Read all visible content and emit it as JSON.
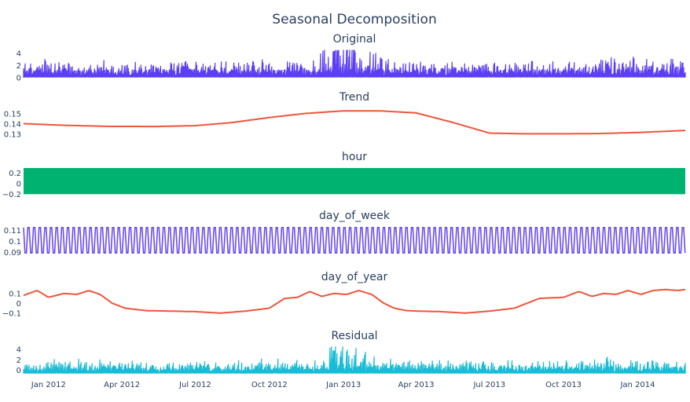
{
  "chart_data": {
    "type": "line",
    "title": "Seasonal Decomposition",
    "x_range": [
      "2011-12-01",
      "2014-03-01"
    ],
    "x_ticks": [
      "Jan 2012",
      "Apr 2012",
      "Jul 2012",
      "Oct 2012",
      "Jan 2013",
      "Apr 2013",
      "Jul 2013",
      "Oct 2013",
      "Jan 2014"
    ],
    "x_tick_dates": [
      "2012-01-01",
      "2012-04-01",
      "2012-07-01",
      "2012-10-01",
      "2013-01-01",
      "2013-04-01",
      "2013-07-01",
      "2013-10-01",
      "2014-01-01"
    ],
    "grid": false,
    "panels": [
      {
        "name": "Original",
        "color": "#5b3ef5",
        "style": "noisy",
        "ylim": [
          0,
          4.8
        ],
        "yticks": [
          "4",
          "2",
          "0"
        ],
        "ytick_values": [
          4,
          2,
          0
        ],
        "mean": 0.9,
        "spread": 1.0,
        "x": [
          "2011-12-01",
          "2012-03-01",
          "2012-06-01",
          "2012-09-01",
          "2012-12-01",
          "2012-12-20",
          "2013-03-01",
          "2013-06-01",
          "2013-09-01",
          "2013-12-01",
          "2014-03-01"
        ],
        "y": [
          1.0,
          1.0,
          0.9,
          1.0,
          1.1,
          4.4,
          1.0,
          0.9,
          0.9,
          1.2,
          1.3
        ]
      },
      {
        "name": "Trend",
        "color": "#ef553b",
        "style": "line",
        "ylim": [
          0.127,
          0.157
        ],
        "yticks": [
          "0.15",
          "0.14",
          "0.13"
        ],
        "ytick_values": [
          0.15,
          0.14,
          0.13
        ],
        "x": [
          "2011-12-01",
          "2012-01-15",
          "2012-03-15",
          "2012-05-15",
          "2012-07-01",
          "2012-08-15",
          "2012-10-01",
          "2012-11-15",
          "2013-01-01",
          "2013-02-15",
          "2013-04-01",
          "2013-05-15",
          "2013-07-01",
          "2013-08-15",
          "2013-10-01",
          "2013-11-15",
          "2014-01-01",
          "2014-03-01"
        ],
        "y": [
          0.1405,
          0.139,
          0.1378,
          0.1377,
          0.1385,
          0.1415,
          0.1465,
          0.1505,
          0.153,
          0.153,
          0.151,
          0.142,
          0.1312,
          0.1305,
          0.1305,
          0.1308,
          0.1318,
          0.1338
        ]
      },
      {
        "name": "hour",
        "color": "#00b26f",
        "style": "band",
        "ylim": [
          -0.24,
          0.33
        ],
        "yticks": [
          "0.2",
          "0",
          "−0.2"
        ],
        "ytick_values": [
          0.2,
          0,
          -0.2
        ],
        "band": [
          -0.2,
          0.3
        ]
      },
      {
        "name": "day_of_week",
        "color": "#6a4cf0",
        "style": "osc",
        "ylim": [
          0.0875,
          0.1145
        ],
        "yticks": [
          "0.11",
          "0.1",
          "0.09"
        ],
        "ytick_values": [
          0.11,
          0.1,
          0.09
        ],
        "period_days": 7,
        "min": 0.0895,
        "max": 0.1125
      },
      {
        "name": "day_of_year",
        "color": "#ef553b",
        "style": "line",
        "ylim": [
          -0.15,
          0.17
        ],
        "yticks": [
          "0.1",
          "0",
          "−0.1"
        ],
        "ytick_values": [
          0.1,
          0,
          -0.1
        ],
        "x": [
          "2011-12-01",
          "2011-12-18",
          "2012-01-01",
          "2012-01-20",
          "2012-02-05",
          "2012-02-20",
          "2012-03-05",
          "2012-03-20",
          "2012-04-05",
          "2012-05-01",
          "2012-06-01",
          "2012-07-01",
          "2012-08-01",
          "2012-09-01",
          "2012-10-01",
          "2012-10-20",
          "2012-11-05",
          "2012-11-20",
          "2012-12-05",
          "2012-12-20",
          "2013-01-05",
          "2013-01-20",
          "2013-02-05",
          "2013-02-20",
          "2013-03-05",
          "2013-03-20",
          "2013-04-05",
          "2013-05-01",
          "2013-06-01",
          "2013-07-01",
          "2013-08-01",
          "2013-09-01",
          "2013-10-01",
          "2013-10-20",
          "2013-11-05",
          "2013-11-20",
          "2013-12-05",
          "2013-12-20",
          "2014-01-05",
          "2014-01-20",
          "2014-02-05",
          "2014-02-20",
          "2014-03-01"
        ],
        "y": [
          0.08,
          0.13,
          0.06,
          0.1,
          0.09,
          0.13,
          0.09,
          0.0,
          -0.05,
          -0.075,
          -0.08,
          -0.085,
          -0.1,
          -0.08,
          -0.05,
          0.05,
          0.06,
          0.12,
          0.07,
          0.1,
          0.09,
          0.13,
          0.09,
          0.0,
          -0.05,
          -0.075,
          -0.08,
          -0.085,
          -0.1,
          -0.08,
          -0.05,
          0.05,
          0.06,
          0.12,
          0.07,
          0.1,
          0.09,
          0.13,
          0.09,
          0.13,
          0.14,
          0.13,
          0.14
        ]
      },
      {
        "name": "Residual",
        "color": "#17bcd6",
        "style": "noisy",
        "ylim": [
          -0.7,
          4.8
        ],
        "yticks": [
          "4",
          "2",
          "0"
        ],
        "ytick_values": [
          4,
          2,
          0
        ],
        "mean": 0.2,
        "spread": 1.0,
        "x": [
          "2011-12-01",
          "2012-03-01",
          "2012-06-01",
          "2012-09-01",
          "2012-12-01",
          "2012-12-20",
          "2013-03-01",
          "2013-06-01",
          "2013-09-01",
          "2013-12-01",
          "2014-03-01"
        ],
        "y": [
          0.9,
          0.9,
          0.8,
          0.9,
          1.0,
          3.8,
          0.9,
          0.8,
          0.8,
          1.1,
          1.2
        ]
      }
    ]
  }
}
